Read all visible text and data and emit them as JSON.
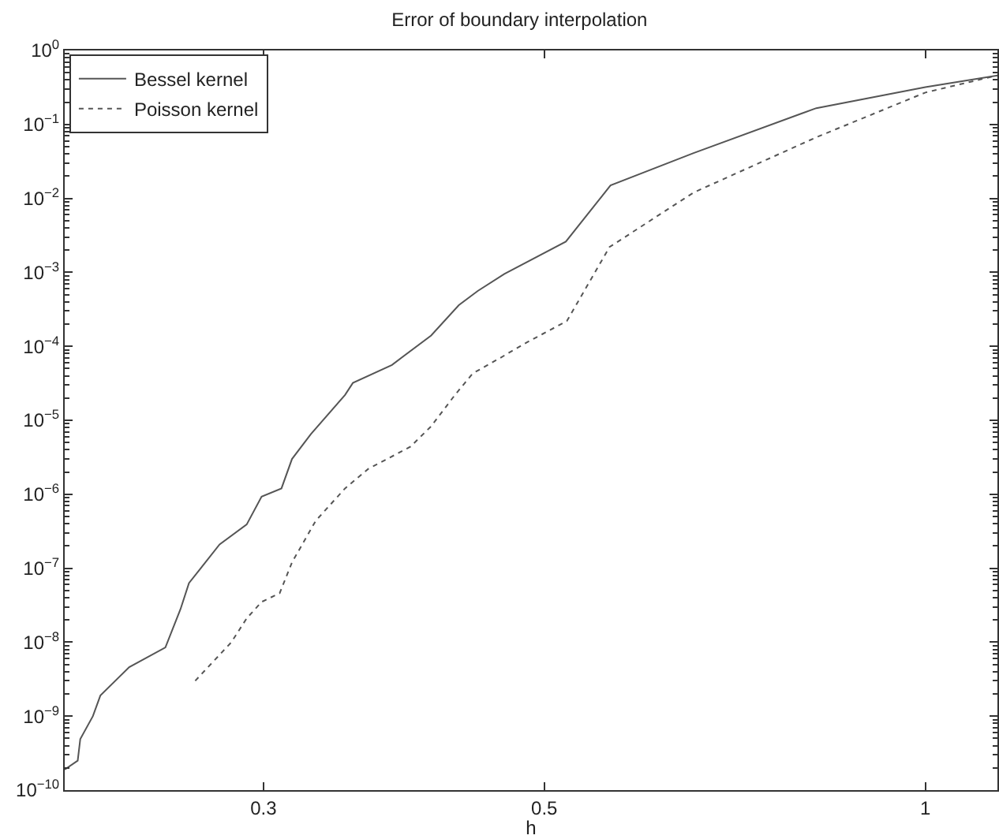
{
  "chart_data": {
    "type": "line",
    "title": "Error of boundary interpolation",
    "xlabel": "h",
    "log": "xy",
    "grid": false,
    "legend": "top left",
    "xlim": [
      0.209,
      1.14
    ],
    "xticks": [
      0.3,
      0.5,
      1
    ],
    "ylim": [
      1e-10,
      1
    ],
    "yticks": [
      {
        "value": 1e-10,
        "label": "10$^{−10}$"
      },
      {
        "value": 1e-09,
        "label": "10$^{−9}$"
      },
      {
        "value": 1e-08,
        "label": "10$^{−8}$"
      },
      {
        "value": 1e-07,
        "label": "10$^{−7}$"
      },
      {
        "value": 1e-06,
        "label": "10$^{−6}$"
      },
      {
        "value": 1e-05,
        "label": "10$^{−5}$"
      },
      {
        "value": 0.0001,
        "label": "10$^{−4}$"
      },
      {
        "value": 0.001,
        "label": "10$^{−3}$"
      },
      {
        "value": 0.01,
        "label": "10$^{−2}$"
      },
      {
        "value": 0.1,
        "label": "10$^{−1}$"
      },
      {
        "value": 1,
        "label": "10$^{0}$"
      }
    ],
    "series": [
      {
        "name": "Bessel kernel",
        "color": "#555555",
        "line_style": "solid",
        "x": [
          0.209,
          0.214,
          0.215,
          0.22,
          0.223,
          0.235,
          0.251,
          0.258,
          0.262,
          0.277,
          0.291,
          0.299,
          0.31,
          0.316,
          0.327,
          0.348,
          0.353,
          0.379,
          0.407,
          0.428,
          0.443,
          0.465,
          0.52,
          0.564,
          0.656,
          0.82,
          1.0,
          1.14
        ],
        "values": [
          1.9e-10,
          2.5e-10,
          4.9e-10,
          1e-09,
          1.9e-09,
          4.6e-09,
          8.5e-09,
          2.8e-08,
          6.3e-08,
          2.1e-07,
          3.9e-07,
          9.3e-07,
          1.2e-06,
          3e-06,
          6.5e-06,
          2.2e-05,
          3.2e-05,
          5.6e-05,
          0.00014,
          0.00036,
          0.00056,
          0.00095,
          0.0026,
          0.015,
          0.041,
          0.166,
          0.32,
          0.46
        ]
      },
      {
        "name": "Poisson kernel",
        "color": "#555555",
        "line_style": "dotted",
        "x": [
          0.265,
          0.283,
          0.291,
          0.299,
          0.309,
          0.316,
          0.33,
          0.348,
          0.363,
          0.392,
          0.407,
          0.425,
          0.439,
          0.461,
          0.483,
          0.521,
          0.563,
          0.656,
          0.82,
          1.0,
          1.14
        ],
        "values": [
          3e-09,
          1e-08,
          2.1e-08,
          3.5e-08,
          4.6e-08,
          1.2e-07,
          4.4e-07,
          1.2e-06,
          2.2e-06,
          4.4e-06,
          8.3e-06,
          2.2e-05,
          4.3e-05,
          6.9e-05,
          0.00011,
          0.00022,
          0.0022,
          0.012,
          0.067,
          0.27,
          0.46
        ]
      }
    ]
  }
}
